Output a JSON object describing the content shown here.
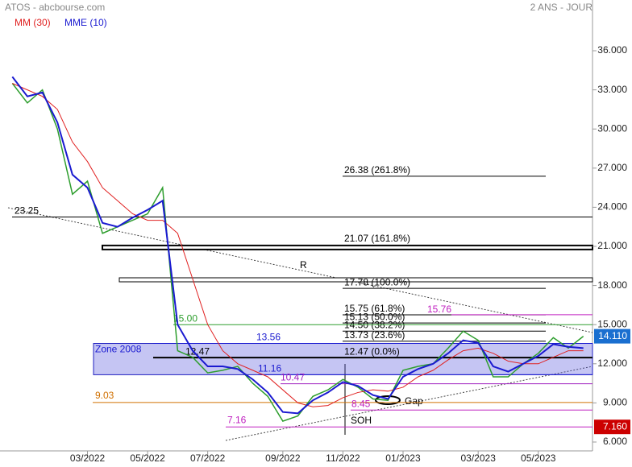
{
  "header": {
    "title": "ATOS - abcbourse.com",
    "period": "2 ANS - JOUR"
  },
  "chart_data": {
    "type": "line",
    "categories": [
      null,
      null,
      null,
      null,
      null,
      "03/2022",
      null,
      null,
      null,
      "05/2022",
      null,
      null,
      null,
      "07/2022",
      null,
      null,
      null,
      null,
      "09/2022",
      null,
      null,
      null,
      "11/2022",
      null,
      null,
      null,
      "01/2023",
      null,
      null,
      null,
      null,
      "03/2023",
      null,
      null,
      null,
      "05/2023",
      null,
      null,
      null
    ],
    "series": [
      {
        "color": "#2e9e2e",
        "values": [
          33.5,
          32,
          33,
          30,
          25,
          26,
          22,
          22.5,
          23,
          23.5,
          25.5,
          13,
          12.5,
          11.3,
          11.5,
          11.8,
          10.5,
          9.5,
          7.6,
          8,
          9.5,
          10,
          10.8,
          10.2,
          9.3,
          9.2,
          11.5,
          11.8,
          12,
          13.2,
          14.5,
          13.8,
          11,
          11,
          12,
          12.8,
          14,
          13.2,
          14.11
        ]
      },
      {
        "name": "MM (30)",
        "color": "#e02020",
        "values": [
          33.5,
          33,
          32.5,
          31.5,
          29,
          27.5,
          25.5,
          24.5,
          23.5,
          23,
          23,
          22,
          18.5,
          15,
          13,
          12,
          11.5,
          11,
          10,
          9,
          8.7,
          8.8,
          9.4,
          9.8,
          10,
          9.9,
          10.2,
          11,
          11.5,
          12.3,
          13,
          13.2,
          12.8,
          12.2,
          12,
          12,
          12.5,
          13,
          13
        ]
      },
      {
        "name": "MME (10)",
        "color": "#1a1ad0",
        "values": [
          34,
          32.5,
          32.8,
          30.5,
          26.5,
          25.5,
          22.8,
          22.5,
          23.2,
          23.8,
          24.5,
          15,
          13,
          11.8,
          11.8,
          11.6,
          10.8,
          9.8,
          8.3,
          8.2,
          9.2,
          9.8,
          10.6,
          10.3,
          9.6,
          9.3,
          11,
          11.6,
          12,
          12.8,
          13.8,
          13.6,
          11.8,
          11.4,
          12,
          12.6,
          13.5,
          13.3,
          13.2
        ]
      }
    ],
    "ylim": [
      5.32,
      39.89
    ],
    "yticks": [
      {
        "value": 6,
        "label": "6.000"
      },
      {
        "value": 9,
        "label": "9.000"
      },
      {
        "value": 12,
        "label": "12.000"
      },
      {
        "value": 15,
        "label": "15.000"
      },
      {
        "value": 18,
        "label": "18.000"
      },
      {
        "value": 21,
        "label": "21.000"
      },
      {
        "value": 24,
        "label": "24.000"
      },
      {
        "value": 27,
        "label": "27.000"
      },
      {
        "value": 30,
        "label": "30.000"
      },
      {
        "value": 33,
        "label": "33.000"
      },
      {
        "value": 36,
        "label": "36.000"
      }
    ],
    "last_price": {
      "value": 14.11,
      "label": "14.110",
      "color": "#1a6fd0"
    },
    "low_marker": {
      "value": 7.16,
      "label": "7.160",
      "color": "#cc0000"
    },
    "zone": {
      "label": "Zone 2008",
      "from": 11.16,
      "to": 13.56
    },
    "levels": [
      {
        "label": "23.25",
        "value": 23.25,
        "color": "#000000"
      },
      {
        "label": "26.38  (261.8%)",
        "value": 26.38,
        "color": "#000000"
      },
      {
        "label": "21.07  (161.8%)",
        "value": 21.07,
        "color": "#000000"
      },
      {
        "label": "17.78  (100.0%)",
        "value": 17.78,
        "color": "#000000"
      },
      {
        "label": "15.75  (61.8%)",
        "value": 15.75,
        "color": "#000000"
      },
      {
        "label": "15.13  (50.0%)",
        "value": 15.13,
        "color": "#000000"
      },
      {
        "label": "14.50  (38.2%)",
        "value": 14.5,
        "color": "#000000"
      },
      {
        "label": "13.73  (23.6%)",
        "value": 13.73,
        "color": "#000000"
      },
      {
        "label": "12.47  (0.0%)",
        "value": 12.47,
        "color": "#000000"
      },
      {
        "label": "15.76",
        "value": 15.76,
        "color": "#c020c0"
      },
      {
        "label": "15.00",
        "value": 15,
        "color": "#2e9e2e"
      },
      {
        "label": "13.56",
        "value": 13.56,
        "color": "#1a1ad0"
      },
      {
        "label": "12.47",
        "value": 12.47,
        "color": "#000000"
      },
      {
        "label": "11.16",
        "value": 11.16,
        "color": "#1a1ad0"
      },
      {
        "label": "10.47",
        "value": 10.47,
        "color": "#a020c0"
      },
      {
        "label": "9.03",
        "value": 9.03,
        "color": "#d07000"
      },
      {
        "label": "8.45",
        "value": 8.45,
        "color": "#c020c0"
      },
      {
        "label": "7.16",
        "value": 7.16,
        "color": "#c020c0"
      }
    ],
    "annotations": {
      "resistance": "R",
      "gap": "Gap",
      "soh": "SOH"
    }
  }
}
